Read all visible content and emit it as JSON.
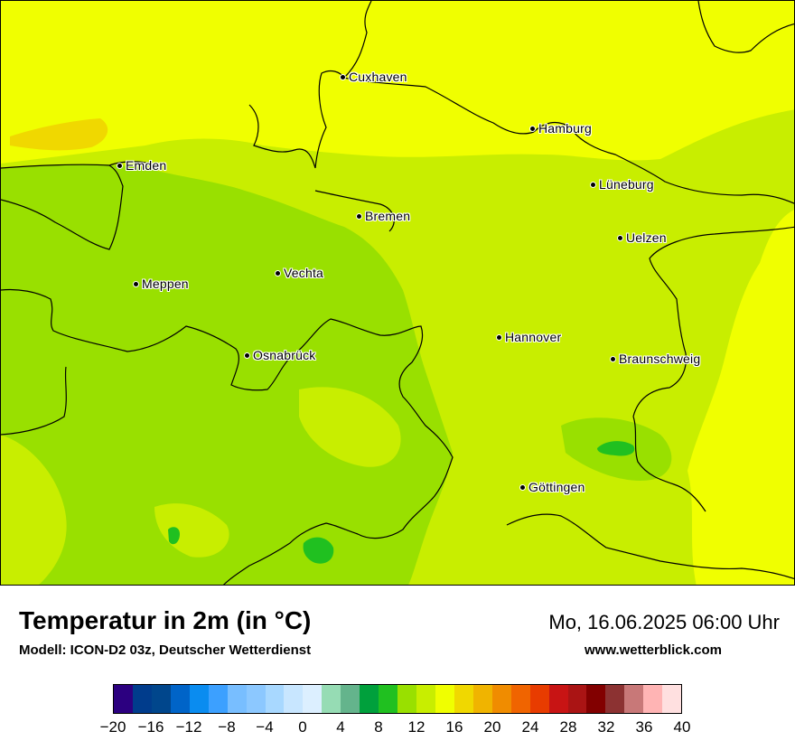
{
  "map": {
    "cities": [
      {
        "name": "Cuxhaven"
      },
      {
        "name": "Hamburg"
      },
      {
        "name": "Emden"
      },
      {
        "name": "Lüneburg"
      },
      {
        "name": "Bremen"
      },
      {
        "name": "Uelzen"
      },
      {
        "name": "Vechta"
      },
      {
        "name": "Meppen"
      },
      {
        "name": "Hannover"
      },
      {
        "name": "Osnabrück"
      },
      {
        "name": "Braunschweig"
      },
      {
        "name": "Göttingen"
      }
    ],
    "field_colors": {
      "temp_10_12": "#99e000",
      "temp_12_14": "#c8ee00",
      "temp_14_16": "#f0ff00",
      "temp_16_18": "#f0d800",
      "temp_8_10": "#20c020"
    }
  },
  "header": {
    "title": "Temperatur in 2m (in °C)",
    "subtitle": "Modell: ICON-D2 03z, Deutscher Wetterdienst",
    "datetime": "Mo, 16.06.2025 06:00 Uhr",
    "website": "www.wetterblick.com"
  },
  "legend": {
    "colors": [
      "#2c0080",
      "#003c8c",
      "#00468c",
      "#0064c8",
      "#0a8cf0",
      "#3ca0ff",
      "#78beff",
      "#8cc8ff",
      "#a8d8ff",
      "#c8e6ff",
      "#dcefff",
      "#96dcb4",
      "#64b48c",
      "#00a03c",
      "#20c020",
      "#99e000",
      "#c8ee00",
      "#f0ff00",
      "#f0d800",
      "#f0b400",
      "#f08c00",
      "#f06400",
      "#e83c00",
      "#c81414",
      "#aa1414",
      "#820000",
      "#8c3232",
      "#c87878",
      "#ffb4b4",
      "#ffe0e0"
    ],
    "ticks": [
      "−20",
      "−16",
      "−12",
      "−8",
      "−4",
      "0",
      "4",
      "8",
      "12",
      "16",
      "20",
      "24",
      "28",
      "32",
      "36",
      "40"
    ]
  }
}
